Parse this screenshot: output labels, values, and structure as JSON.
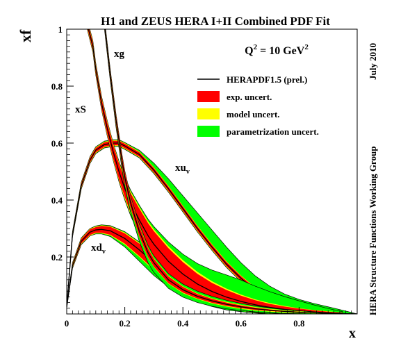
{
  "chart_data": {
    "type": "line",
    "title": "H1 and ZEUS HERA I+II Combined PDF Fit",
    "scale_label": {
      "main": "Q",
      "sup1": "2",
      "eq": " = 10 GeV",
      "sup2": "2"
    },
    "xlabel": "x",
    "ylabel": "xf",
    "side_note_top": "July 2010",
    "side_note_bottom": "HERA Structure Functions Working Group",
    "xlim": [
      0,
      1
    ],
    "ylim": [
      0,
      1
    ],
    "x_ticks": [
      "0",
      "0.2",
      "0.4",
      "0.6",
      "0.8"
    ],
    "y_ticks": [
      "0.2",
      "0.4",
      "0.6",
      "0.8",
      "1"
    ],
    "legend": {
      "placement": "top-right",
      "entries": [
        {
          "label": "HERAPDF1.5 (prel.)",
          "kind": "line",
          "color": "#000000"
        },
        {
          "label": "exp. uncert.",
          "kind": "box",
          "color": "#ff0000"
        },
        {
          "label": "model uncert.",
          "kind": "box",
          "color": "#ffff00"
        },
        {
          "label": "parametrization uncert.",
          "kind": "box",
          "color": "#00ff00"
        }
      ]
    },
    "series": [
      {
        "name": "xu_v",
        "label_main": "xu",
        "label_sub": "v",
        "x": [
          0.0,
          0.02,
          0.05,
          0.08,
          0.1,
          0.13,
          0.16,
          0.18,
          0.2,
          0.25,
          0.3,
          0.35,
          0.4,
          0.45,
          0.5,
          0.55,
          0.6,
          0.65,
          0.7,
          0.75,
          0.8,
          0.85,
          0.9,
          0.95,
          1.0
        ],
        "y": [
          0.025,
          0.28,
          0.45,
          0.54,
          0.575,
          0.595,
          0.6,
          0.6,
          0.59,
          0.56,
          0.505,
          0.44,
          0.37,
          0.3,
          0.235,
          0.175,
          0.125,
          0.083,
          0.052,
          0.03,
          0.016,
          0.007,
          0.003,
          0.001,
          0.0
        ],
        "exp_half": [
          0.002,
          0.006,
          0.008,
          0.008,
          0.008,
          0.008,
          0.008,
          0.008,
          0.008,
          0.008,
          0.008,
          0.008,
          0.008,
          0.008,
          0.008,
          0.008,
          0.008,
          0.007,
          0.006,
          0.005,
          0.004,
          0.003,
          0.002,
          0.001,
          0.0
        ],
        "model_half": [
          0.003,
          0.008,
          0.01,
          0.01,
          0.01,
          0.01,
          0.01,
          0.01,
          0.01,
          0.01,
          0.01,
          0.01,
          0.01,
          0.01,
          0.01,
          0.01,
          0.01,
          0.009,
          0.008,
          0.007,
          0.005,
          0.004,
          0.003,
          0.001,
          0.0
        ],
        "par_lo": [
          0.004,
          0.01,
          0.012,
          0.012,
          0.012,
          0.012,
          0.012,
          0.012,
          0.012,
          0.012,
          0.012,
          0.012,
          0.012,
          0.012,
          0.012,
          0.012,
          0.012,
          0.012,
          0.01,
          0.009,
          0.007,
          0.005,
          0.003,
          0.002,
          0.0
        ],
        "par_hi": [
          0.004,
          0.01,
          0.012,
          0.012,
          0.012,
          0.012,
          0.012,
          0.012,
          0.012,
          0.015,
          0.025,
          0.035,
          0.045,
          0.055,
          0.06,
          0.06,
          0.055,
          0.05,
          0.045,
          0.04,
          0.035,
          0.03,
          0.022,
          0.012,
          0.0
        ]
      },
      {
        "name": "xd_v",
        "label_main": "xd",
        "label_sub": "v",
        "x": [
          0.0,
          0.02,
          0.05,
          0.08,
          0.1,
          0.12,
          0.15,
          0.2,
          0.25,
          0.3,
          0.35,
          0.4,
          0.45,
          0.5,
          0.55,
          0.6,
          0.65,
          0.7,
          0.75,
          0.8,
          0.85,
          0.9,
          1.0
        ],
        "y": [
          0.025,
          0.17,
          0.255,
          0.287,
          0.295,
          0.297,
          0.292,
          0.265,
          0.225,
          0.18,
          0.14,
          0.105,
          0.077,
          0.054,
          0.036,
          0.024,
          0.015,
          0.009,
          0.005,
          0.003,
          0.002,
          0.001,
          0.0
        ],
        "exp_half": [
          0.003,
          0.006,
          0.008,
          0.01,
          0.01,
          0.012,
          0.014,
          0.018,
          0.022,
          0.024,
          0.024,
          0.022,
          0.02,
          0.017,
          0.014,
          0.011,
          0.008,
          0.006,
          0.004,
          0.003,
          0.002,
          0.001,
          0.0
        ],
        "model_half": [
          0.004,
          0.008,
          0.01,
          0.012,
          0.012,
          0.014,
          0.016,
          0.021,
          0.025,
          0.027,
          0.027,
          0.025,
          0.022,
          0.019,
          0.016,
          0.013,
          0.01,
          0.007,
          0.005,
          0.003,
          0.002,
          0.001,
          0.0
        ],
        "par_lo": [
          0.005,
          0.01,
          0.012,
          0.013,
          0.014,
          0.016,
          0.02,
          0.03,
          0.04,
          0.045,
          0.045,
          0.04,
          0.034,
          0.028,
          0.022,
          0.016,
          0.012,
          0.009,
          0.006,
          0.004,
          0.003,
          0.001,
          0.0
        ],
        "par_hi": [
          0.005,
          0.01,
          0.012,
          0.013,
          0.014,
          0.016,
          0.018,
          0.024,
          0.028,
          0.03,
          0.03,
          0.028,
          0.025,
          0.022,
          0.02,
          0.018,
          0.016,
          0.013,
          0.01,
          0.008,
          0.006,
          0.004,
          0.0
        ]
      },
      {
        "name": "xS",
        "label_main": "xS",
        "label_sub": "",
        "x": [
          0.07,
          0.09,
          0.1,
          0.11,
          0.12,
          0.14,
          0.16,
          0.18,
          0.2,
          0.22,
          0.25,
          0.28,
          0.3,
          0.35,
          0.4,
          0.45,
          0.5,
          0.55,
          0.6,
          0.65,
          0.7,
          0.75,
          0.8,
          0.85,
          0.9,
          0.95
        ],
        "y": [
          1.02,
          0.94,
          0.86,
          0.8,
          0.74,
          0.65,
          0.57,
          0.5,
          0.44,
          0.39,
          0.33,
          0.275,
          0.245,
          0.185,
          0.14,
          0.105,
          0.079,
          0.059,
          0.044,
          0.032,
          0.023,
          0.016,
          0.011,
          0.007,
          0.004,
          0.002
        ],
        "exp_half": [
          0.012,
          0.014,
          0.015,
          0.016,
          0.018,
          0.02,
          0.024,
          0.028,
          0.03,
          0.034,
          0.04,
          0.044,
          0.046,
          0.046,
          0.042,
          0.036,
          0.03,
          0.025,
          0.02,
          0.016,
          0.012,
          0.01,
          0.008,
          0.006,
          0.004,
          0.003
        ],
        "model_half": [
          0.016,
          0.018,
          0.019,
          0.02,
          0.022,
          0.025,
          0.029,
          0.033,
          0.036,
          0.04,
          0.046,
          0.05,
          0.052,
          0.053,
          0.049,
          0.043,
          0.036,
          0.03,
          0.024,
          0.019,
          0.015,
          0.012,
          0.009,
          0.007,
          0.005,
          0.003
        ],
        "par_lo": [
          0.018,
          0.02,
          0.021,
          0.022,
          0.024,
          0.027,
          0.031,
          0.036,
          0.04,
          0.045,
          0.052,
          0.058,
          0.062,
          0.065,
          0.062,
          0.056,
          0.048,
          0.04,
          0.032,
          0.026,
          0.02,
          0.016,
          0.012,
          0.009,
          0.006,
          0.003
        ],
        "par_hi": [
          0.018,
          0.02,
          0.021,
          0.022,
          0.024,
          0.027,
          0.031,
          0.036,
          0.04,
          0.045,
          0.052,
          0.058,
          0.062,
          0.068,
          0.07,
          0.072,
          0.075,
          0.078,
          0.075,
          0.065,
          0.055,
          0.045,
          0.035,
          0.025,
          0.015,
          0.006
        ]
      },
      {
        "name": "xg",
        "label_main": "xg",
        "label_sub": "",
        "x": [
          0.13,
          0.14,
          0.15,
          0.16,
          0.17,
          0.18,
          0.19,
          0.2,
          0.22,
          0.25,
          0.28,
          0.3,
          0.35,
          0.4,
          0.45,
          0.5,
          0.55,
          0.6,
          0.65,
          0.7,
          0.75,
          0.8,
          0.85,
          0.9,
          0.95
        ],
        "y": [
          1.02,
          0.93,
          0.84,
          0.76,
          0.68,
          0.61,
          0.54,
          0.48,
          0.39,
          0.29,
          0.215,
          0.18,
          0.12,
          0.085,
          0.062,
          0.046,
          0.034,
          0.025,
          0.018,
          0.013,
          0.009,
          0.006,
          0.004,
          0.002,
          0.001
        ],
        "exp_half": [
          0.012,
          0.013,
          0.014,
          0.015,
          0.016,
          0.017,
          0.018,
          0.019,
          0.019,
          0.018,
          0.016,
          0.014,
          0.012,
          0.01,
          0.008,
          0.007,
          0.006,
          0.005,
          0.004,
          0.003,
          0.002,
          0.002,
          0.001,
          0.001,
          0.001
        ],
        "model_half": [
          0.014,
          0.015,
          0.016,
          0.017,
          0.018,
          0.019,
          0.02,
          0.021,
          0.021,
          0.02,
          0.018,
          0.016,
          0.014,
          0.012,
          0.01,
          0.009,
          0.008,
          0.007,
          0.006,
          0.005,
          0.004,
          0.003,
          0.002,
          0.001,
          0.001
        ],
        "par_lo": [
          0.02,
          0.021,
          0.022,
          0.024,
          0.026,
          0.028,
          0.03,
          0.032,
          0.034,
          0.036,
          0.036,
          0.034,
          0.03,
          0.026,
          0.022,
          0.019,
          0.016,
          0.013,
          0.011,
          0.009,
          0.007,
          0.005,
          0.004,
          0.002,
          0.001
        ],
        "par_hi": [
          0.016,
          0.017,
          0.018,
          0.019,
          0.02,
          0.021,
          0.022,
          0.023,
          0.024,
          0.025,
          0.025,
          0.024,
          0.022,
          0.02,
          0.018,
          0.016,
          0.014,
          0.012,
          0.01,
          0.008,
          0.006,
          0.005,
          0.003,
          0.002,
          0.001
        ]
      }
    ],
    "colors": {
      "par": "#00ff00",
      "model": "#ffff00",
      "exp": "#ff0000",
      "central": "#000000"
    }
  }
}
